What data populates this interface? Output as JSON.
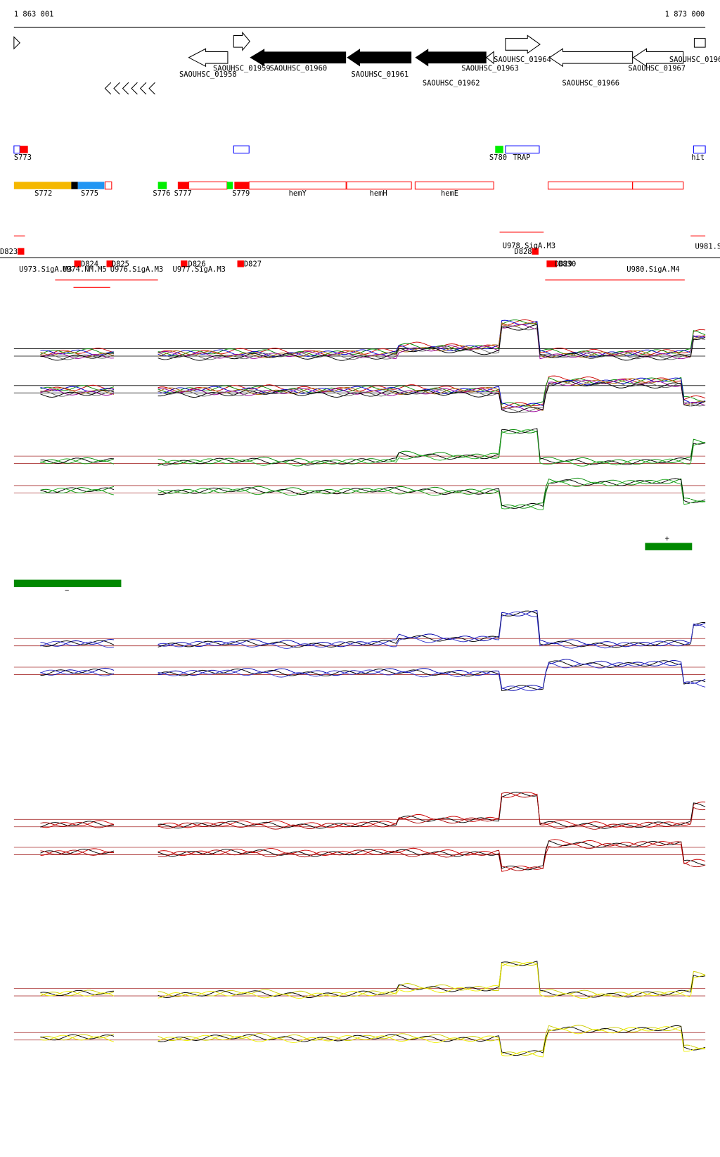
{
  "ruler": {
    "start": "1 863 001",
    "end": "1 873 000"
  },
  "genes": [
    "SAOUHSC_01958",
    "SAOUHSC_01959",
    "SAOUHSC_01960",
    "SAOUHSC_01961",
    "SAOUHSC_01962",
    "SAOUHSC_01963",
    "SAOUHSC_01964",
    "SAOUHSC_01966",
    "SAOUHSC_01967",
    "SAOUHSC_0196"
  ],
  "features": [
    "S773",
    "S780",
    "TRAP",
    "hit"
  ],
  "transcripts": [
    "S772",
    "S775",
    "S776",
    "S777",
    "S779",
    "hemY",
    "hemH",
    "hemE"
  ],
  "regulation": [
    "D823",
    "U981.S",
    "U973.SigA.M3",
    "U974.NM.M5",
    "D824",
    "D825",
    "U976.SigA.M3",
    "D826",
    "U977.SigA.M3",
    "D827",
    "U978.SigA.M3",
    "D828",
    "D829",
    "D830",
    "U980.SigA.M4"
  ],
  "strands": [
    "+",
    "−"
  ]
}
